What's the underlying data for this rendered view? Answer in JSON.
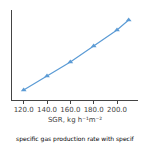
{
  "chart_data": {
    "type": "line",
    "x": [
      120.0,
      140.0,
      160.0,
      180.0,
      200.0,
      210.0
    ],
    "values": [
      1.0,
      1.7,
      2.4,
      3.2,
      4.0,
      4.5
    ],
    "xlabel": "SGR, kg h⁻¹m⁻²",
    "annotations": [
      "specific gas production rate with specif"
    ],
    "color": "#5b9bd5",
    "marker": "triangle-up",
    "line_style": "solid",
    "xlim": [
      110,
      218
    ],
    "ylim": [
      0.5,
      5.0
    ],
    "xticks": [
      {
        "value": 120.0,
        "label": "120.0"
      },
      {
        "value": 140.0,
        "label": "140.0"
      },
      {
        "value": 160.0,
        "label": "160.0"
      },
      {
        "value": 180.0,
        "label": "180.0"
      },
      {
        "value": 200.0,
        "label": "200.0"
      }
    ],
    "tick_labels": "x",
    "grid": false
  }
}
